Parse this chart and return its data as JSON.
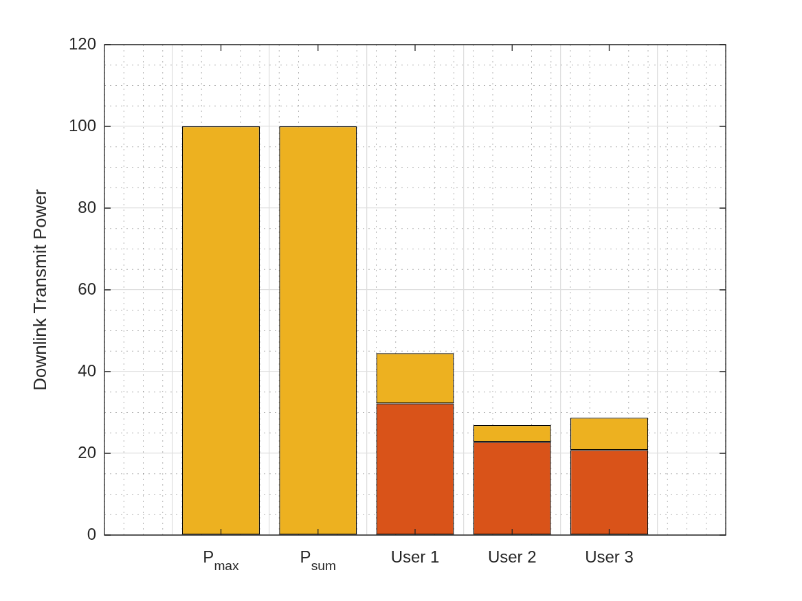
{
  "chart_data": {
    "type": "bar",
    "stacked": true,
    "ylabel": "Downlink Transmit Power",
    "categories": [
      "P$_{max}$",
      "P$_{sum}$",
      "User 1",
      "User 2",
      "User 3"
    ],
    "series": [
      {
        "color": "#d95319",
        "values": [
          0,
          0,
          32.2,
          22.8,
          20.8
        ]
      },
      {
        "color": "#edb120",
        "values": [
          100,
          100,
          12.3,
          4.1,
          7.9
        ]
      }
    ],
    "ylim": [
      0,
      120
    ],
    "yticks": [
      0,
      20,
      40,
      60,
      80,
      100,
      120
    ],
    "grid": true,
    "legend": false
  }
}
